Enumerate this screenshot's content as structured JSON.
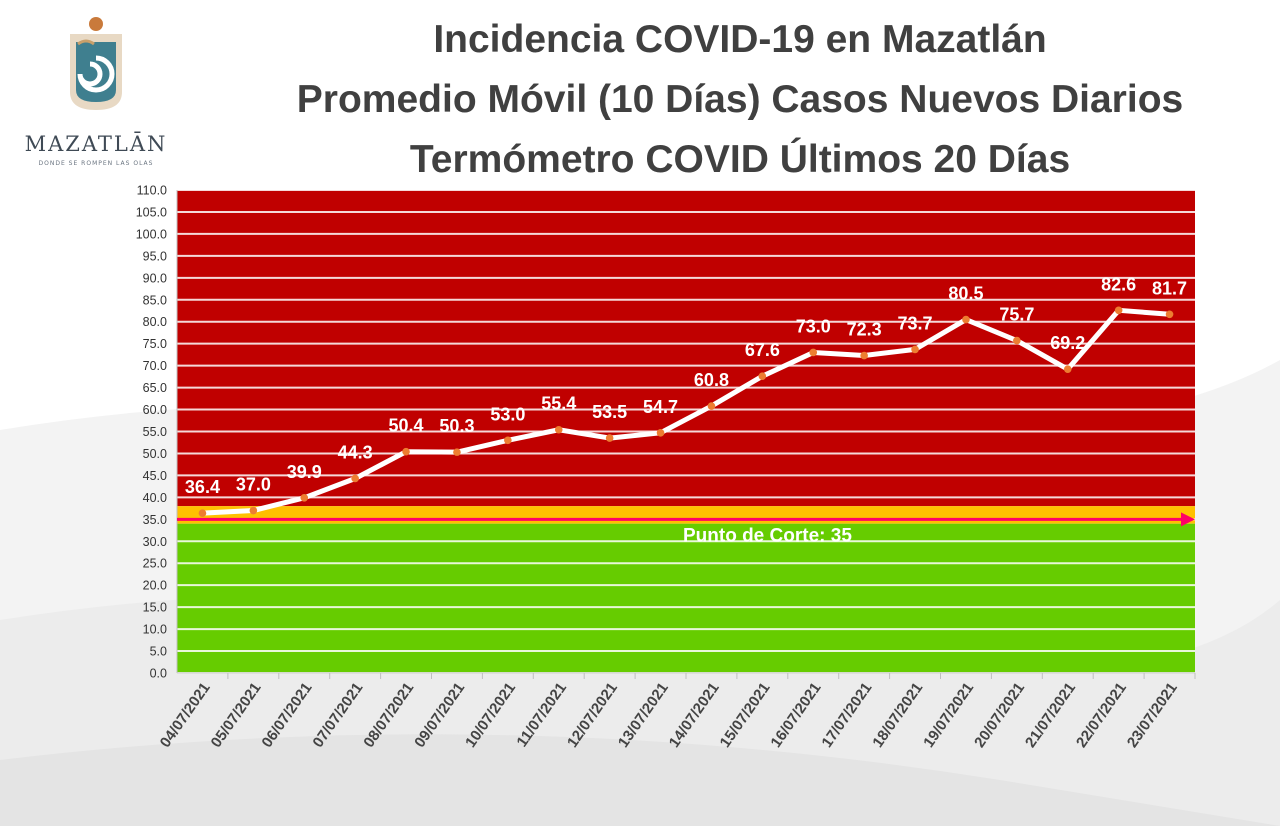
{
  "logo": {
    "name": "MAZATLĀN",
    "tagline": "DONDE SE ROMPEN LAS OLAS"
  },
  "titles": [
    "Incidencia COVID-19 en Mazatlán",
    "Promedio Móvil (10 Días) Casos Nuevos Diarios",
    "Termómetro COVID Últimos 20 Días"
  ],
  "colors": {
    "danger_zone": "#c00000",
    "warning_band": "#ffc000",
    "safe_zone": "#66cc00",
    "line": "#ffffff",
    "marker": "#ed7d31",
    "cut_arrow": "#ff0066"
  },
  "chart_data": {
    "type": "line",
    "categories": [
      "04/07/2021",
      "05/07/2021",
      "06/07/2021",
      "07/07/2021",
      "08/07/2021",
      "09/07/2021",
      "10/07/2021",
      "11/07/2021",
      "12/07/2021",
      "13/07/2021",
      "14/07/2021",
      "15/07/2021",
      "16/07/2021",
      "17/07/2021",
      "18/07/2021",
      "19/07/2021",
      "20/07/2021",
      "21/07/2021",
      "22/07/2021",
      "23/07/2021"
    ],
    "values": [
      36.4,
      37.0,
      39.9,
      44.3,
      50.4,
      50.3,
      53.0,
      55.4,
      53.5,
      54.7,
      60.8,
      67.6,
      73.0,
      72.3,
      73.7,
      80.5,
      75.7,
      69.2,
      82.6,
      81.7
    ],
    "value_labels": [
      "36.4",
      "37.0",
      "39.9",
      "44.3",
      "50.4",
      "50.3",
      "53.0",
      "55.4",
      "53.5",
      "54.7",
      "60.8",
      "67.6",
      "73.0",
      "72.3",
      "73.7",
      "80.5",
      "75.7",
      "69.2",
      "82.6",
      "81.7"
    ],
    "ylim": [
      0,
      110
    ],
    "yticks": [
      "0.0",
      "5.0",
      "10.0",
      "15.0",
      "20.0",
      "25.0",
      "30.0",
      "35.0",
      "40.0",
      "45.0",
      "50.0",
      "55.0",
      "60.0",
      "65.0",
      "70.0",
      "75.0",
      "80.0",
      "85.0",
      "90.0",
      "95.0",
      "100.0",
      "105.0",
      "110.0"
    ],
    "grid": true,
    "zones": {
      "safe_max": 34,
      "warning_min": 34,
      "warning_max": 38,
      "danger_min": 38
    },
    "cut_line": {
      "value": 35,
      "label": "Punto de Corte: 35"
    }
  }
}
